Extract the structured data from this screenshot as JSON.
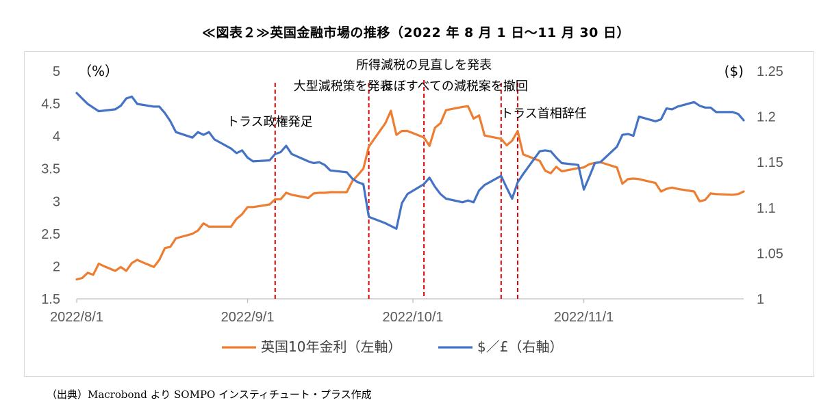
{
  "title": "≪図表２≫英国金融市場の推移（2022 年 8 月 1 日～11 月 30 日）",
  "source": "（出典）Macrobond より SOMPO インスティチュート・プラス作成",
  "chart_data": {
    "type": "line",
    "left_axis": {
      "unit": "（%）",
      "min": 1.5,
      "max": 5,
      "ticks": [
        "5",
        "4.5",
        "4",
        "3.5",
        "3",
        "2.5",
        "2",
        "1.5"
      ]
    },
    "right_axis": {
      "unit": "($)",
      "min": 1.0,
      "max": 1.25,
      "ticks": [
        "1.25",
        "1.2",
        "1.15",
        "1.1",
        "1.05",
        "1"
      ]
    },
    "x_axis": {
      "start": "2022-08-01",
      "end": "2022-11-30",
      "tick_labels": [
        "2022/8/1",
        "2022/9/1",
        "2022/10/1",
        "2022/11/1"
      ],
      "tick_dates": [
        "2022-08-01",
        "2022-09-01",
        "2022-10-01",
        "2022-11-01"
      ]
    },
    "grid": false,
    "legend_position": "bottom",
    "colors": {
      "yield": "#ed7d31",
      "fx": "#4472c4",
      "event": "#e00000"
    },
    "events": [
      {
        "date": "2022-09-06",
        "label": "トラス政権発足"
      },
      {
        "date": "2022-09-23",
        "label": "大型減税策を発表"
      },
      {
        "date": "2022-10-03",
        "label": "所得減税の見直しを発表"
      },
      {
        "date": "2022-10-17",
        "label": "ほぼすべての減税案を撤回"
      },
      {
        "date": "2022-10-20",
        "label": "トラス首相辞任"
      }
    ],
    "series": [
      {
        "name": "英国10年金利（左軸）",
        "axis": "left",
        "x": [
          "2022-08-01",
          "2022-08-02",
          "2022-08-03",
          "2022-08-04",
          "2022-08-05",
          "2022-08-06",
          "2022-08-08",
          "2022-08-09",
          "2022-08-10",
          "2022-08-11",
          "2022-08-12",
          "2022-08-13",
          "2022-08-15",
          "2022-08-16",
          "2022-08-17",
          "2022-08-18",
          "2022-08-19",
          "2022-08-22",
          "2022-08-23",
          "2022-08-24",
          "2022-08-25",
          "2022-08-26",
          "2022-08-29",
          "2022-08-30",
          "2022-08-31",
          "2022-09-01",
          "2022-09-02",
          "2022-09-05",
          "2022-09-06",
          "2022-09-07",
          "2022-09-08",
          "2022-09-09",
          "2022-09-12",
          "2022-09-13",
          "2022-09-14",
          "2022-09-15",
          "2022-09-16",
          "2022-09-19",
          "2022-09-20",
          "2022-09-21",
          "2022-09-22",
          "2022-09-23",
          "2022-09-26",
          "2022-09-27",
          "2022-09-28",
          "2022-09-29",
          "2022-09-30",
          "2022-10-03",
          "2022-10-04",
          "2022-10-05",
          "2022-10-06",
          "2022-10-07",
          "2022-10-10",
          "2022-10-11",
          "2022-10-12",
          "2022-10-13",
          "2022-10-14",
          "2022-10-17",
          "2022-10-18",
          "2022-10-19",
          "2022-10-20",
          "2022-10-21",
          "2022-10-24",
          "2022-10-25",
          "2022-10-26",
          "2022-10-27",
          "2022-10-28",
          "2022-10-31",
          "2022-11-01",
          "2022-11-02",
          "2022-11-03",
          "2022-11-04",
          "2022-11-07",
          "2022-11-08",
          "2022-11-09",
          "2022-11-10",
          "2022-11-11",
          "2022-11-14",
          "2022-11-15",
          "2022-11-16",
          "2022-11-17",
          "2022-11-18",
          "2022-11-21",
          "2022-11-22",
          "2022-11-23",
          "2022-11-24",
          "2022-11-25",
          "2022-11-28",
          "2022-11-29",
          "2022-11-30"
        ],
        "values": [
          1.8,
          1.82,
          1.9,
          1.87,
          2.04,
          2.0,
          1.93,
          1.99,
          1.93,
          2.05,
          2.1,
          2.06,
          1.99,
          2.1,
          2.28,
          2.3,
          2.43,
          2.5,
          2.55,
          2.66,
          2.61,
          2.61,
          2.61,
          2.73,
          2.8,
          2.91,
          2.91,
          2.95,
          3.03,
          3.03,
          3.13,
          3.1,
          3.05,
          3.12,
          3.13,
          3.13,
          3.14,
          3.14,
          3.31,
          3.4,
          3.5,
          3.84,
          4.2,
          4.39,
          4.02,
          4.08,
          4.08,
          3.98,
          3.85,
          4.13,
          4.2,
          4.4,
          4.45,
          4.46,
          4.27,
          4.32,
          4.01,
          3.96,
          3.86,
          3.93,
          4.08,
          3.72,
          3.62,
          3.47,
          3.43,
          3.53,
          3.46,
          3.51,
          3.52,
          3.57,
          3.59,
          3.6,
          3.52,
          3.27,
          3.34,
          3.35,
          3.34,
          3.28,
          3.15,
          3.19,
          3.21,
          3.19,
          3.15,
          3.0,
          3.02,
          3.12,
          3.11,
          3.1,
          3.11,
          3.15
        ]
      },
      {
        "name": "$／£（右軸）",
        "axis": "right",
        "x": [
          "2022-08-01",
          "2022-08-02",
          "2022-08-03",
          "2022-08-04",
          "2022-08-05",
          "2022-08-08",
          "2022-08-09",
          "2022-08-10",
          "2022-08-11",
          "2022-08-12",
          "2022-08-15",
          "2022-08-16",
          "2022-08-17",
          "2022-08-18",
          "2022-08-19",
          "2022-08-22",
          "2022-08-23",
          "2022-08-24",
          "2022-08-25",
          "2022-08-26",
          "2022-08-29",
          "2022-08-30",
          "2022-08-31",
          "2022-09-01",
          "2022-09-02",
          "2022-09-05",
          "2022-09-06",
          "2022-09-07",
          "2022-09-08",
          "2022-09-09",
          "2022-09-12",
          "2022-09-13",
          "2022-09-14",
          "2022-09-15",
          "2022-09-16",
          "2022-09-19",
          "2022-09-20",
          "2022-09-21",
          "2022-09-22",
          "2022-09-23",
          "2022-09-26",
          "2022-09-27",
          "2022-09-28",
          "2022-09-29",
          "2022-09-30",
          "2022-10-03",
          "2022-10-04",
          "2022-10-05",
          "2022-10-06",
          "2022-10-07",
          "2022-10-10",
          "2022-10-11",
          "2022-10-12",
          "2022-10-13",
          "2022-10-14",
          "2022-10-17",
          "2022-10-18",
          "2022-10-19",
          "2022-10-20",
          "2022-10-21",
          "2022-10-24",
          "2022-10-25",
          "2022-10-26",
          "2022-10-27",
          "2022-10-28",
          "2022-10-31",
          "2022-11-01",
          "2022-11-02",
          "2022-11-03",
          "2022-11-04",
          "2022-11-07",
          "2022-11-08",
          "2022-11-09",
          "2022-11-10",
          "2022-11-11",
          "2022-11-14",
          "2022-11-15",
          "2022-11-16",
          "2022-11-17",
          "2022-11-18",
          "2022-11-21",
          "2022-11-22",
          "2022-11-23",
          "2022-11-24",
          "2022-11-25",
          "2022-11-28",
          "2022-11-29",
          "2022-11-30"
        ],
        "values": [
          1.226,
          1.22,
          1.214,
          1.21,
          1.206,
          1.208,
          1.212,
          1.22,
          1.222,
          1.214,
          1.211,
          1.211,
          1.204,
          1.195,
          1.183,
          1.177,
          1.183,
          1.18,
          1.183,
          1.175,
          1.165,
          1.16,
          1.163,
          1.155,
          1.151,
          1.152,
          1.159,
          1.161,
          1.168,
          1.159,
          1.151,
          1.149,
          1.15,
          1.147,
          1.141,
          1.139,
          1.132,
          1.128,
          1.126,
          1.09,
          1.083,
          1.08,
          1.077,
          1.105,
          1.115,
          1.126,
          1.133,
          1.123,
          1.115,
          1.11,
          1.106,
          1.108,
          1.106,
          1.119,
          1.125,
          1.135,
          1.122,
          1.11,
          1.128,
          1.137,
          1.162,
          1.163,
          1.162,
          1.155,
          1.149,
          1.147,
          1.12,
          1.134,
          1.149,
          1.15,
          1.167,
          1.18,
          1.181,
          1.179,
          1.2,
          1.195,
          1.197,
          1.209,
          1.208,
          1.211,
          1.216,
          1.212,
          1.21,
          1.21,
          1.205,
          1.205,
          1.203,
          1.196
        ]
      }
    ]
  }
}
